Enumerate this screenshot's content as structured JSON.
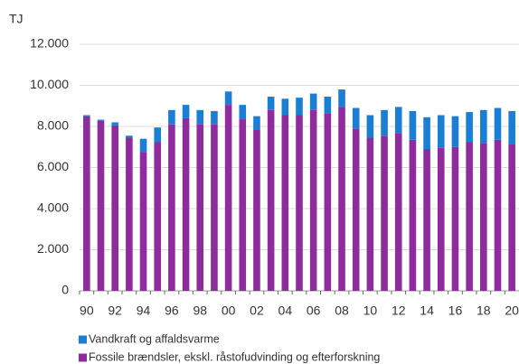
{
  "chart_data": {
    "type": "stacked_bar",
    "y_label": "TJ",
    "categories": [
      "90",
      null,
      "92",
      null,
      "94",
      null,
      "96",
      null,
      "98",
      null,
      "00",
      null,
      "02",
      null,
      "04",
      null,
      "06",
      null,
      "08",
      null,
      "10",
      null,
      "12",
      null,
      "14",
      null,
      "16",
      null,
      "18",
      null,
      "20"
    ],
    "series": [
      {
        "name": "Fossile brændsler, ekskl. råstofudvinding og efterforskning",
        "color": "#8e2c9e",
        "values": [
          8500,
          8280,
          8050,
          7450,
          6750,
          7250,
          8100,
          8400,
          8100,
          8100,
          9050,
          8350,
          7850,
          8800,
          8550,
          8550,
          8800,
          8650,
          8950,
          7900,
          7450,
          7550,
          7650,
          7350,
          6900,
          6950,
          7000,
          7250,
          7200,
          7350,
          7150
        ]
      },
      {
        "name": "Vandkraft og affaldsvarme",
        "color": "#1a7fd4",
        "values": [
          50,
          50,
          150,
          100,
          650,
          700,
          700,
          650,
          700,
          650,
          650,
          700,
          650,
          650,
          800,
          850,
          800,
          800,
          850,
          1000,
          1100,
          1250,
          1300,
          1400,
          1550,
          1600,
          1500,
          1450,
          1600,
          1550,
          1600
        ]
      }
    ],
    "ylim": [
      0,
      12000
    ],
    "yticks": [
      0,
      {
        "value": 2000,
        "label": "2.000"
      },
      {
        "value": 4000,
        "label": "4.000"
      },
      {
        "value": 6000,
        "label": "6.000"
      },
      {
        "value": 8000,
        "label": "8.000"
      },
      {
        "value": 10000,
        "label": "10.000"
      },
      {
        "value": 12000,
        "label": "12.000"
      }
    ],
    "grid": true
  }
}
